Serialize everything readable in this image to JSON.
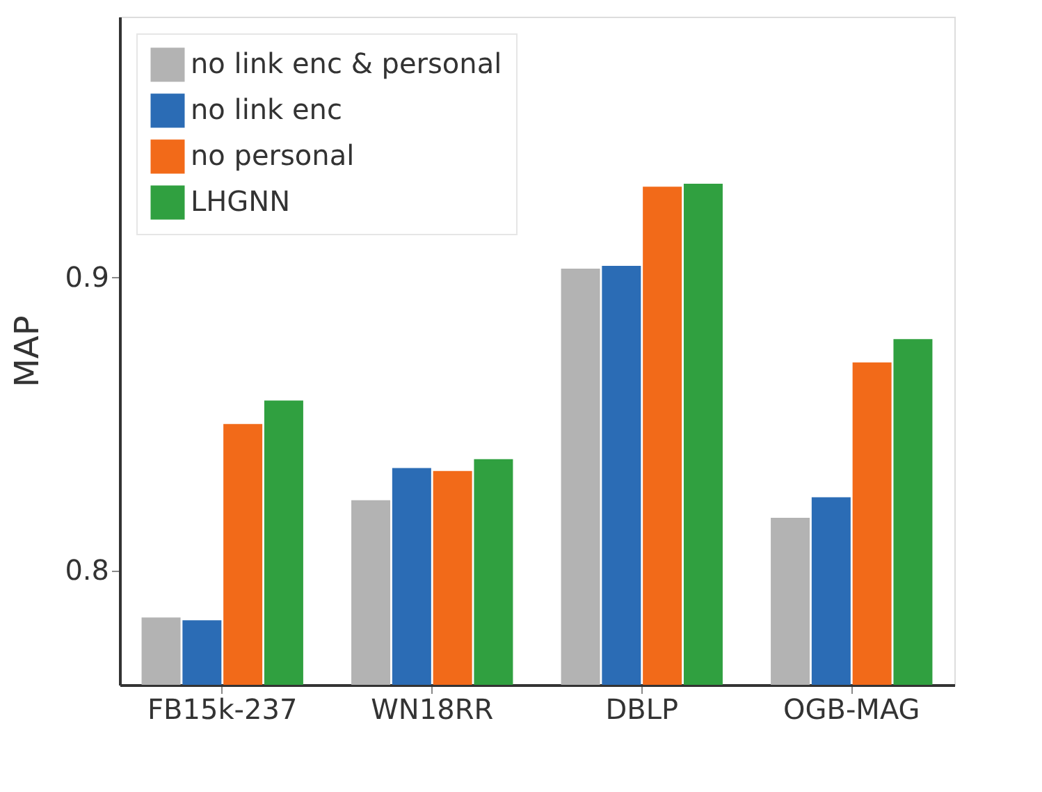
{
  "chart_data": {
    "type": "bar",
    "ylabel": "MAP",
    "categories": [
      "FB15k-237",
      "WN18RR",
      "DBLP",
      "OGB-MAG"
    ],
    "series": [
      {
        "name": "no link enc & personal",
        "color": "#b3b3b3",
        "values": [
          0.784,
          0.824,
          0.903,
          0.818
        ]
      },
      {
        "name": "no link enc",
        "color": "#2b6cb5",
        "values": [
          0.783,
          0.835,
          0.904,
          0.825
        ]
      },
      {
        "name": "no personal",
        "color": "#f26a19",
        "values": [
          0.85,
          0.834,
          0.931,
          0.871
        ]
      },
      {
        "name": "LHGNN",
        "color": "#30a040",
        "values": [
          0.858,
          0.838,
          0.932,
          0.879
        ]
      }
    ],
    "ylim": [
      0.761,
      0.989
    ],
    "yticks": [
      0.8,
      0.9
    ],
    "grid": false,
    "legend": "top left"
  }
}
